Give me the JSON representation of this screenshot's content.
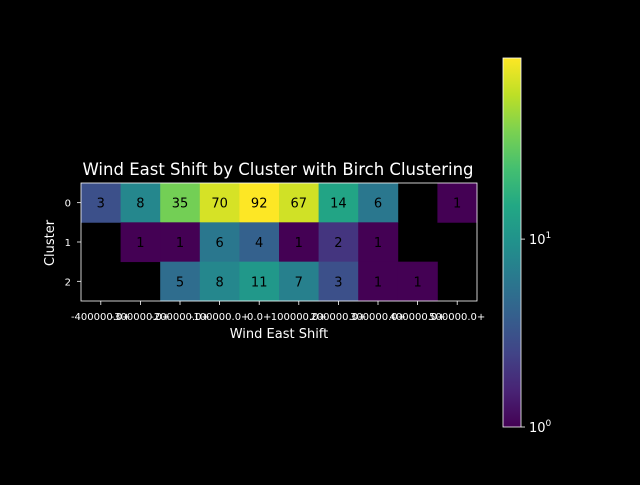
{
  "chart_data": {
    "type": "heatmap",
    "title": "Wind East Shift by Cluster with Birch Clustering",
    "xlabel": "Wind East Shift",
    "ylabel": "Cluster",
    "x_categories": [
      "-400000.0+",
      "-300000.0+",
      "-200000.0+",
      "-100000.0+",
      "0.0+",
      "100000.0+",
      "200000.0+",
      "300000.0+",
      "400000.0+",
      "500000.0+"
    ],
    "y_categories": [
      "0",
      "1",
      "2"
    ],
    "values": [
      [
        3,
        8,
        35,
        70,
        92,
        67,
        14,
        6,
        null,
        1
      ],
      [
        null,
        1,
        1,
        6,
        4,
        1,
        2,
        1,
        null,
        null
      ],
      [
        null,
        null,
        5,
        8,
        11,
        7,
        3,
        1,
        1,
        null
      ]
    ],
    "color_scale": "log",
    "colormap": "viridis",
    "colorbar_range": [
      1,
      92
    ],
    "colorbar_ticks": [
      {
        "value": 1,
        "base": "10",
        "exp": "0"
      },
      {
        "value": 10,
        "base": "10",
        "exp": "1"
      }
    ],
    "missing_color": "#000000",
    "grid": false,
    "legend": "colorbar-right"
  },
  "colors": {
    "background": "#000000",
    "foreground": "#ffffff",
    "cell_text": "#000000"
  }
}
